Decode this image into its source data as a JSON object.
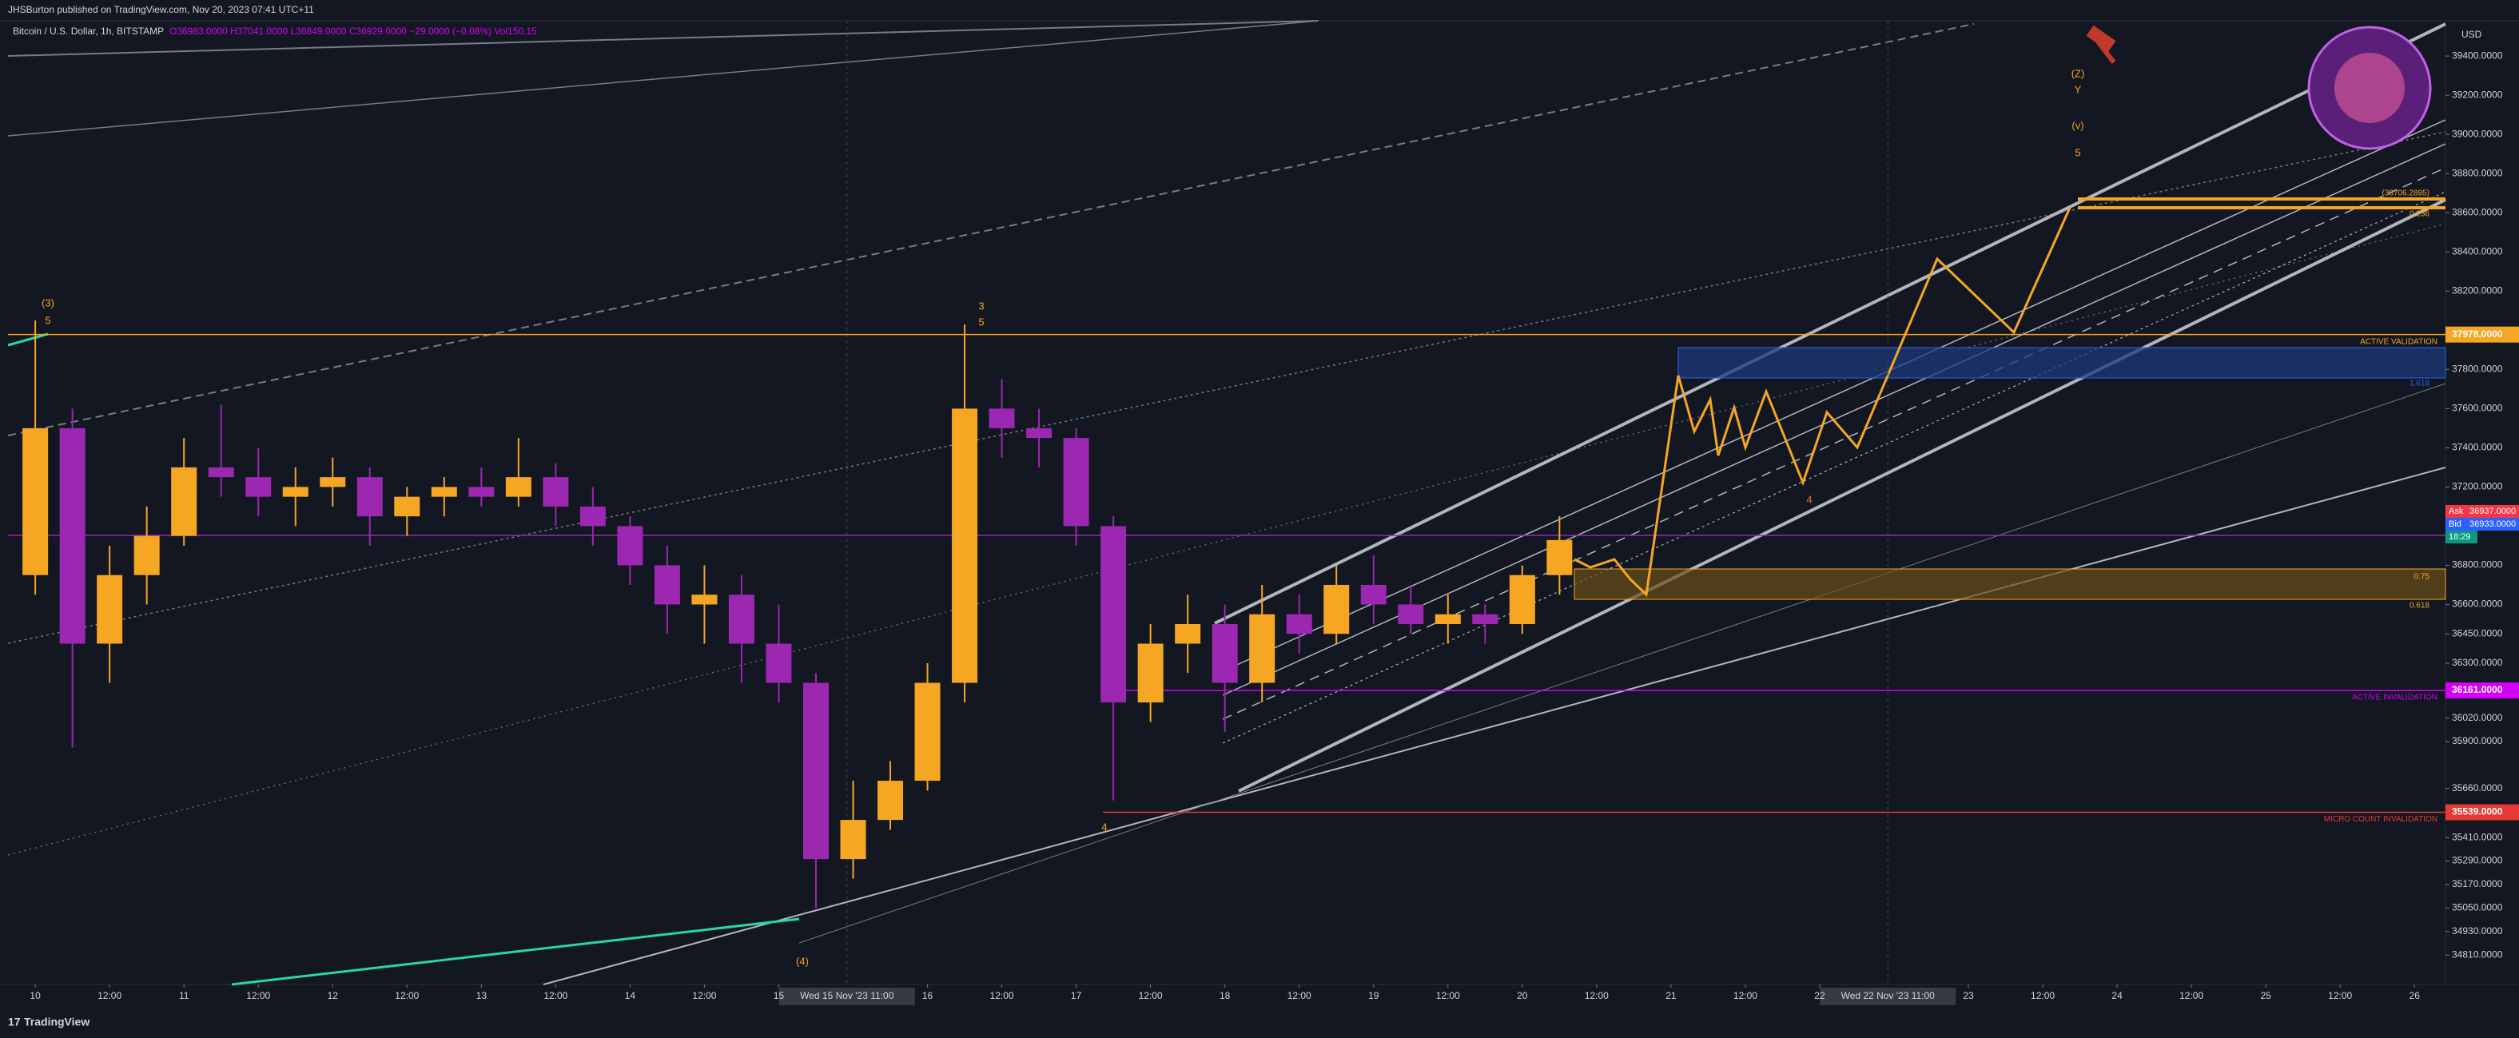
{
  "header": {
    "publisher": "JHSBurton published on TradingView.com, Nov 20, 2023 07:41 UTC+11",
    "symbol": "Bitcoin / U.S. Dollar, 1h, BITSTAMP",
    "ohlc": "O36983.0000 H37041.0000 L36849.0000 C36929.0000 −29.0000 (−0.08%) Vol150.15",
    "currency": "USD",
    "brand": "TradingView"
  },
  "chart_data": {
    "type": "candlestick",
    "up_color": "#f5a623",
    "down_color": "#9c27b0",
    "x": [
      0,
      6,
      12,
      18,
      24,
      30,
      36,
      42,
      48,
      54,
      60,
      66,
      72,
      78,
      84,
      90,
      96,
      102,
      108,
      114,
      120,
      126,
      132,
      138,
      144,
      150,
      156,
      162,
      168,
      174,
      180,
      186,
      192,
      198,
      204,
      210,
      216,
      222,
      228,
      234,
      240,
      246
    ],
    "open": [
      36750,
      37500,
      36400,
      36750,
      36950,
      37300,
      37250,
      37150,
      37200,
      37250,
      37050,
      37150,
      37200,
      37150,
      37250,
      37100,
      37000,
      36800,
      36600,
      36650,
      36400,
      36200,
      35300,
      35500,
      35700,
      36200,
      37600,
      37500,
      37450,
      37000,
      36100,
      36400,
      36500,
      36200,
      36550,
      36450,
      36700,
      36600,
      36500,
      36550,
      36500,
      36750
    ],
    "high": [
      38050,
      37600,
      36900,
      37100,
      37450,
      37620,
      37400,
      37300,
      37350,
      37300,
      37200,
      37250,
      37300,
      37450,
      37320,
      37200,
      37050,
      36900,
      36800,
      36750,
      36600,
      36250,
      35700,
      35800,
      36300,
      38030,
      37750,
      37600,
      37500,
      37050,
      36500,
      36650,
      36600,
      36700,
      36650,
      36800,
      36850,
      36700,
      36650,
      36600,
      36800,
      37050
    ],
    "low": [
      36650,
      35870,
      36200,
      36600,
      36900,
      37150,
      37050,
      37000,
      37100,
      36900,
      36950,
      37050,
      37100,
      37100,
      37000,
      36900,
      36700,
      36450,
      36400,
      36200,
      36100,
      35050,
      35200,
      35450,
      35650,
      36100,
      37350,
      37300,
      36900,
      35600,
      36000,
      36250,
      35950,
      36100,
      36350,
      36400,
      36500,
      36450,
      36400,
      36400,
      36450,
      36650
    ],
    "close": [
      37500,
      36400,
      36750,
      36950,
      37300,
      37250,
      37150,
      37200,
      37250,
      37050,
      37150,
      37200,
      37150,
      37250,
      37100,
      37000,
      36800,
      36600,
      36650,
      36400,
      36200,
      35300,
      35500,
      35700,
      36200,
      37600,
      37500,
      37450,
      37000,
      36100,
      36400,
      36500,
      36200,
      36550,
      36450,
      36700,
      36600,
      36500,
      36550,
      36500,
      36750,
      36929
    ],
    "xlim": [
      -4.4,
      389
    ],
    "ylim": [
      34660,
      39580
    ],
    "xticks": [
      {
        "value": 0,
        "label": "10"
      },
      {
        "value": 12,
        "label": "12:00"
      },
      {
        "value": 24,
        "label": "11"
      },
      {
        "value": 36,
        "label": "12:00"
      },
      {
        "value": 48,
        "label": "12"
      },
      {
        "value": 60,
        "label": "12:00"
      },
      {
        "value": 72,
        "label": "13"
      },
      {
        "value": 84,
        "label": "12:00"
      },
      {
        "value": 96,
        "label": "14"
      },
      {
        "value": 108,
        "label": "12:00"
      },
      {
        "value": 120,
        "label": "15"
      },
      {
        "value": 144,
        "label": "16"
      },
      {
        "value": 156,
        "label": "12:00"
      },
      {
        "value": 168,
        "label": "17"
      },
      {
        "value": 180,
        "label": "12:00"
      },
      {
        "value": 192,
        "label": "18"
      },
      {
        "value": 204,
        "label": "12:00"
      },
      {
        "value": 216,
        "label": "19"
      },
      {
        "value": 228,
        "label": "12:00"
      },
      {
        "value": 240,
        "label": "20"
      },
      {
        "value": 252,
        "label": "12:00"
      },
      {
        "value": 264,
        "label": "21"
      },
      {
        "value": 276,
        "label": "12:00"
      },
      {
        "value": 288,
        "label": "22"
      },
      {
        "value": 312,
        "label": "23"
      },
      {
        "value": 324,
        "label": "12:00"
      },
      {
        "value": 336,
        "label": "24"
      },
      {
        "value": 348,
        "label": "12:00"
      },
      {
        "value": 360,
        "label": "25"
      },
      {
        "value": 372,
        "label": "12:00"
      },
      {
        "value": 384,
        "label": "26"
      }
    ],
    "crosshairs": [
      {
        "value": 131,
        "label": "Wed 15 Nov '23   11:00"
      },
      {
        "value": 299,
        "label": "Wed 22 Nov '23   11:00"
      }
    ],
    "yticks": [
      {
        "value": 39400,
        "label": "39400.0000"
      },
      {
        "value": 39200,
        "label": "39200.0000"
      },
      {
        "value": 39000,
        "label": "39000.0000"
      },
      {
        "value": 38800,
        "label": "38800.0000"
      },
      {
        "value": 38600,
        "label": "38600.0000"
      },
      {
        "value": 38400,
        "label": "38400.0000"
      },
      {
        "value": 38200,
        "label": "38200.0000"
      },
      {
        "value": 37800,
        "label": "37800.0000"
      },
      {
        "value": 37600,
        "label": "37600.0000"
      },
      {
        "value": 37400,
        "label": "37400.0000"
      },
      {
        "value": 37200,
        "label": "37200.0000"
      },
      {
        "value": 36800,
        "label": "36800.0000"
      },
      {
        "value": 36600,
        "label": "36600.0000"
      },
      {
        "value": 36450,
        "label": "36450.0000"
      },
      {
        "value": 36300,
        "label": "36300.0000"
      },
      {
        "value": 36020,
        "label": "36020.0000"
      },
      {
        "value": 35900,
        "label": "35900.0000"
      },
      {
        "value": 35660,
        "label": "35660.0000"
      },
      {
        "value": 35410,
        "label": "35410.0000"
      },
      {
        "value": 35290,
        "label": "35290.0000"
      },
      {
        "value": 35170,
        "label": "35170.0000"
      },
      {
        "value": 35050,
        "label": "35050.0000"
      },
      {
        "value": 34930,
        "label": "34930.0000"
      },
      {
        "value": 34810,
        "label": "34810.0000"
      }
    ],
    "levels": [
      {
        "value": 37978,
        "label": "37978.0000",
        "note": "ACTIVE VALIDATION",
        "color": "#f5a623"
      },
      {
        "value": 36161,
        "label": "36161.0000",
        "note": "ACTIVE INVALIDATION",
        "color": "#d500f9"
      },
      {
        "value": 35539,
        "label": "35539.0000",
        "note": "MICRO COUNT INVALIDATION",
        "color": "#e53935"
      }
    ],
    "quotes": [
      {
        "name": "Ask",
        "value": 36937,
        "label": "36937.0000",
        "color": "#f23645"
      },
      {
        "name": "Bid",
        "value": 36933,
        "label": "36933.0000",
        "color": "#2962ff"
      }
    ],
    "countdown": "18:29",
    "fib_labels": [
      "(38706.2895)",
      "0.236",
      "1.618",
      "0.75",
      "0.618"
    ],
    "wave_labels": [
      "(3)",
      "5",
      "3",
      "5",
      "(4)",
      "4",
      "4",
      "(Z)",
      "Y",
      "(v)",
      "5"
    ]
  }
}
